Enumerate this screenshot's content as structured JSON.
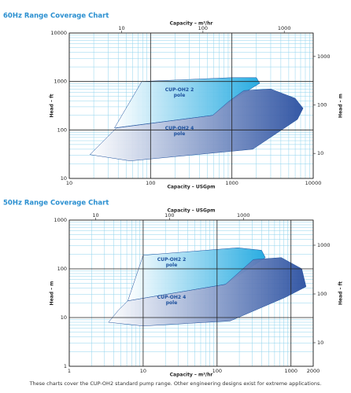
{
  "chart_data": [
    {
      "type": "area",
      "title": "60Hz Range Coverage Chart",
      "log_scale": true,
      "grid": true,
      "xlabel": "Capacity – USGpm",
      "ylabel": "Head – ft",
      "x2label": "Capacity – m³/hr",
      "y2label": "Head – m",
      "xlim": [
        10,
        10000
      ],
      "xticks": [
        10,
        100,
        1000,
        10000
      ],
      "ylim": [
        10,
        10000
      ],
      "yticks": [
        10,
        100,
        1000,
        10000
      ],
      "xminor": [
        20,
        30,
        40,
        50,
        60,
        70,
        80,
        90,
        200,
        300,
        400,
        500,
        600,
        700,
        800,
        900,
        2000,
        3000,
        4000,
        5000,
        6000,
        7000,
        8000,
        9000
      ],
      "yminor": [
        20,
        30,
        40,
        50,
        60,
        70,
        80,
        90,
        200,
        300,
        400,
        500,
        600,
        700,
        800,
        900,
        2000,
        3000,
        4000,
        5000,
        6000,
        7000,
        8000,
        9000
      ],
      "x2lim": [
        2.27,
        2271
      ],
      "x2ticks": [
        10,
        100,
        1000
      ],
      "y2lim": [
        3.048,
        3048
      ],
      "y2ticks": [
        10,
        100,
        1000
      ],
      "series": [
        {
          "name": "CUP-OH2 2 pole",
          "color": "#1ea8e0",
          "x": [
            36,
            78,
            1000,
            2000,
            2200,
            1100,
            580
          ],
          "y": [
            110,
            1000,
            1200,
            1200,
            920,
            450,
            200
          ]
        },
        {
          "name": "CUP-OH2 4 pole",
          "color": "#2a4fa0",
          "x": [
            18,
            26,
            38,
            580,
            900,
            1400,
            3000,
            6000,
            7500,
            6400,
            1800,
            56
          ],
          "y": [
            31,
            58,
            110,
            200,
            380,
            650,
            700,
            450,
            280,
            165,
            40,
            23
          ]
        }
      ]
    },
    {
      "type": "area",
      "title": "50Hz Range Coverage Chart",
      "log_scale": true,
      "grid": true,
      "xlabel": "Capacity – m³/hr",
      "ylabel": "Head – m",
      "x2label": "Capacity – USGpm",
      "y2label": "Head – ft",
      "xlim": [
        1,
        2000
      ],
      "xticks": [
        1,
        10,
        100,
        1000,
        2000
      ],
      "ylim": [
        1,
        1000
      ],
      "yticks": [
        1,
        10,
        100,
        1000
      ],
      "xminor": [
        2,
        3,
        4,
        5,
        6,
        7,
        8,
        9,
        20,
        30,
        40,
        50,
        60,
        70,
        80,
        90,
        200,
        300,
        400,
        500,
        600,
        700,
        800,
        900
      ],
      "yminor": [
        2,
        3,
        4,
        5,
        6,
        7,
        8,
        9,
        20,
        30,
        40,
        50,
        60,
        70,
        80,
        90,
        200,
        300,
        400,
        500,
        600,
        700,
        800,
        900
      ],
      "x2lim": [
        4.403,
        8806
      ],
      "x2ticks": [
        10,
        100,
        1000
      ],
      "y2lim": [
        3.281,
        3281
      ],
      "y2ticks": [
        10,
        100,
        1000
      ],
      "series": [
        {
          "name": "CUP-OH2 2 pole",
          "color": "#1ea8e0",
          "x": [
            6.2,
            10,
            190,
            400,
            450,
            240,
            130
          ],
          "y": [
            22,
            190,
            270,
            240,
            170,
            90,
            48
          ]
        },
        {
          "name": "CUP-OH2 4 pole",
          "color": "#2a4fa0",
          "x": [
            3.4,
            4.6,
            6.2,
            130,
            310,
            740,
            1400,
            1600,
            840,
            150,
            10
          ],
          "y": [
            8,
            14,
            22,
            48,
            155,
            170,
            100,
            43,
            26,
            8.5,
            6.7
          ]
        }
      ]
    }
  ],
  "footnote": "These charts cover the CUP-OH2 standard pump range. Other engineering designs exist for extreme applications."
}
